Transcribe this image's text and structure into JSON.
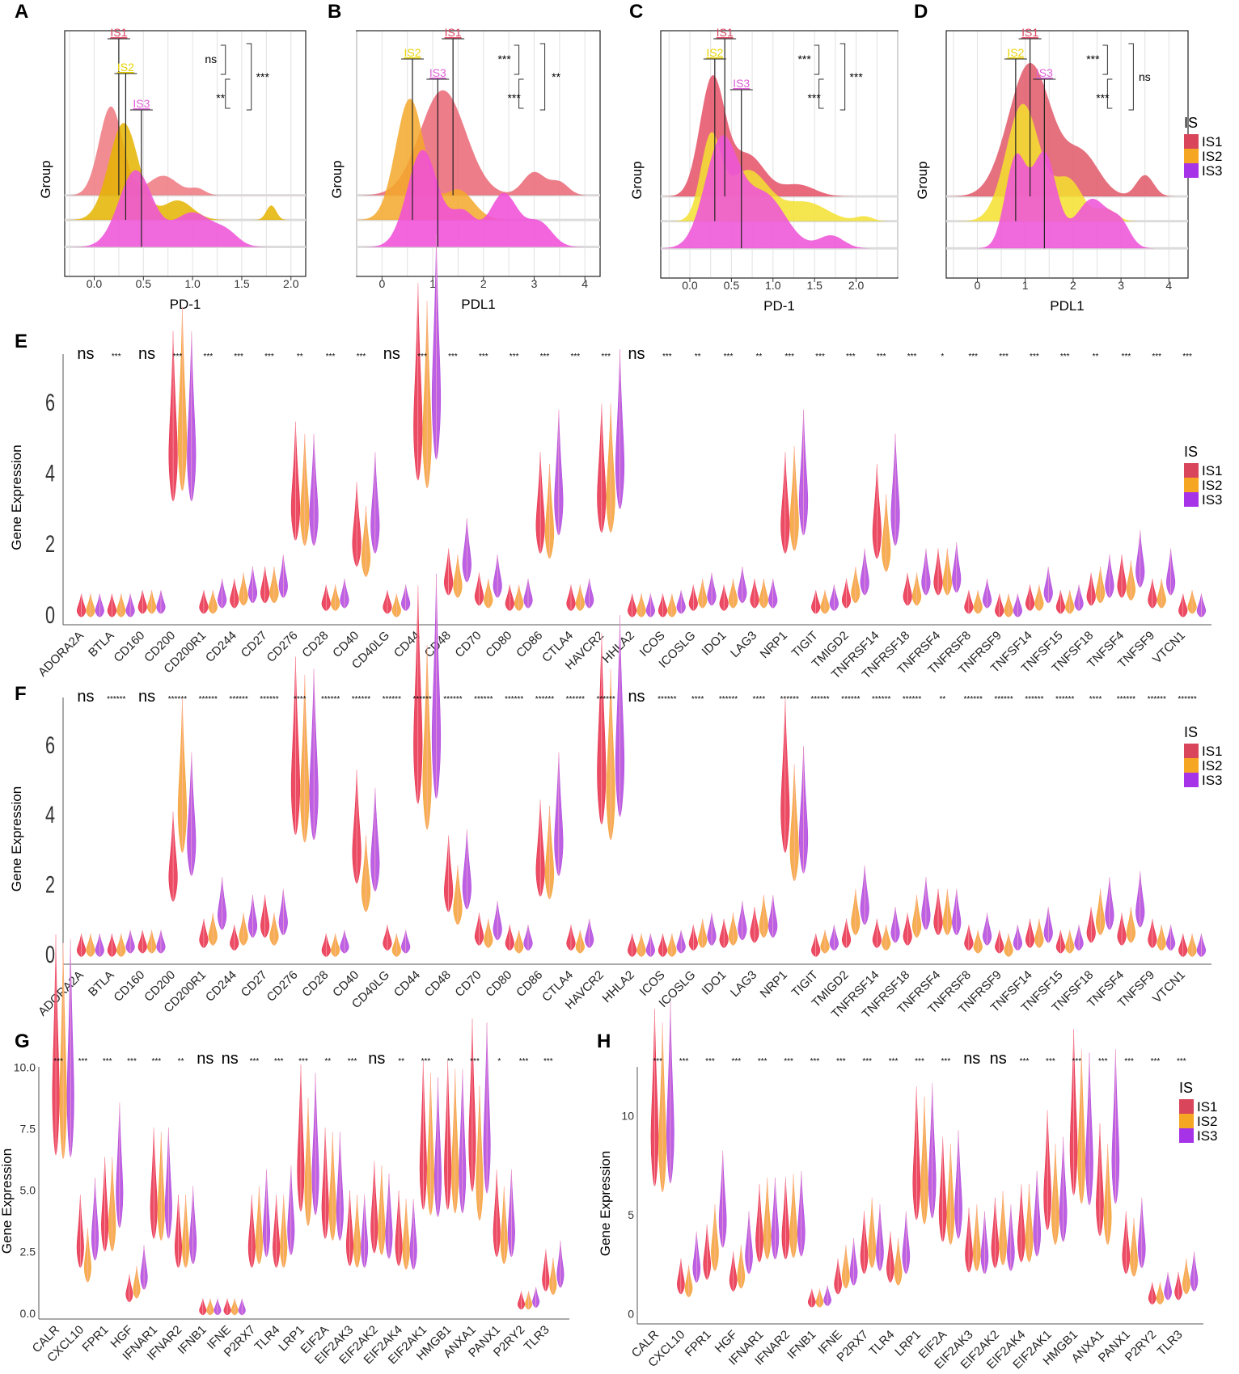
{
  "legend": {
    "title": "IS",
    "groups": [
      "IS1",
      "IS2",
      "IS3"
    ],
    "colors": {
      "IS1": "#d9455a",
      "IS2": "#f5a623",
      "IS3": "#a633e8"
    }
  },
  "chart_data": [
    {
      "panel": "A",
      "type": "area",
      "subtype": "ridgeline",
      "xlabel": "PD-1",
      "ylabel": "Group",
      "xticks": [
        "0.0",
        "0.5",
        "1.0",
        "1.5",
        "2.0"
      ],
      "xlim": [
        -0.3,
        2.15
      ],
      "medians": [
        {
          "name": "IS1",
          "value": 0.25
        },
        {
          "name": "IS2",
          "value": 0.32
        },
        {
          "name": "IS3",
          "value": 0.48
        }
      ],
      "comparisons": [
        {
          "pair": "IS1-IS2",
          "label": "ns"
        },
        {
          "pair": "IS2-IS3",
          "label": "**"
        },
        {
          "pair": "IS1-IS3",
          "label": "***"
        }
      ]
    },
    {
      "panel": "B",
      "type": "area",
      "subtype": "ridgeline",
      "xlabel": "PDL1",
      "ylabel": "Group",
      "xticks": [
        "0",
        "1",
        "2",
        "3",
        "4"
      ],
      "xlim": [
        -0.5,
        4.3
      ],
      "medians": [
        {
          "name": "IS1",
          "value": 1.4
        },
        {
          "name": "IS2",
          "value": 0.6
        },
        {
          "name": "IS3",
          "value": 1.1
        }
      ],
      "comparisons": [
        {
          "pair": "IS1-IS2",
          "label": "***"
        },
        {
          "pair": "IS2-IS3",
          "label": "***"
        },
        {
          "pair": "IS1-IS3",
          "label": "**"
        }
      ]
    },
    {
      "panel": "C",
      "type": "area",
      "subtype": "ridgeline",
      "xlabel": "PD-1",
      "ylabel": "Group",
      "xticks": [
        "0.0",
        "0.5",
        "1.0",
        "1.5",
        "2.0"
      ],
      "xlim": [
        -0.35,
        2.5
      ],
      "medians": [
        {
          "name": "IS1",
          "value": 0.42
        },
        {
          "name": "IS2",
          "value": 0.3
        },
        {
          "name": "IS3",
          "value": 0.62
        }
      ],
      "comparisons": [
        {
          "pair": "IS1-IS2",
          "label": "***"
        },
        {
          "pair": "IS2-IS3",
          "label": "***"
        },
        {
          "pair": "IS1-IS3",
          "label": "***"
        }
      ]
    },
    {
      "panel": "D",
      "type": "area",
      "subtype": "ridgeline",
      "xlabel": "PDL1",
      "ylabel": "Group",
      "xticks": [
        "0",
        "1",
        "2",
        "3",
        "4"
      ],
      "xlim": [
        -0.65,
        4.4
      ],
      "medians": [
        {
          "name": "IS1",
          "value": 1.1
        },
        {
          "name": "IS2",
          "value": 0.8
        },
        {
          "name": "IS3",
          "value": 1.4
        }
      ],
      "comparisons": [
        {
          "pair": "IS1-IS2",
          "label": "***"
        },
        {
          "pair": "IS2-IS3",
          "label": "***"
        },
        {
          "pair": "IS1-IS3",
          "label": "ns"
        }
      ]
    },
    {
      "panel": "E",
      "type": "violin",
      "ylabel": "Gene Expression",
      "yticks": [
        "0",
        "2",
        "4",
        "6"
      ],
      "ylim": [
        -0.3,
        7.8
      ],
      "categories": [
        "ADORA2A",
        "BTLA",
        "CD160",
        "CD200",
        "CD200R1",
        "CD244",
        "CD27",
        "CD276",
        "CD28",
        "CD40",
        "CD40LG",
        "CD44",
        "CD48",
        "CD70",
        "CD80",
        "CD86",
        "CTLA4",
        "HAVCR2",
        "HHLA2",
        "ICOS",
        "ICOSLG",
        "IDO1",
        "LAG3",
        "NRP1",
        "TIGIT",
        "TMIGD2",
        "TNFRSF14",
        "TNFRSF18",
        "TNFRSF4",
        "TNFRSF8",
        "TNFRSF9",
        "TNFSF14",
        "TNFSF15",
        "TNFSF18",
        "TNFSF4",
        "TNFSF9",
        "VTCN1"
      ],
      "significance": [
        "ns",
        "***",
        "ns",
        "***",
        "***",
        "***",
        "***",
        "**",
        "***",
        "***",
        "ns",
        "***",
        "***",
        "***",
        "***",
        "***",
        "***",
        "***",
        "ns",
        "***",
        "**",
        "***",
        "**",
        "***",
        "***",
        "***",
        "***",
        "***",
        "*",
        "***",
        "***",
        "***",
        "***",
        "**",
        "***",
        "***",
        "***"
      ],
      "series": [
        {
          "name": "IS1",
          "values": [
            0.1,
            0.1,
            0.2,
            4.5,
            0.2,
            0.4,
            0.6,
            3.0,
            0.3,
            2.0,
            0.2,
            5.3,
            0.9,
            0.5,
            0.3,
            2.5,
            0.3,
            3.3,
            0.1,
            0.1,
            0.3,
            0.3,
            0.4,
            2.5,
            0.2,
            0.4,
            2.3,
            0.5,
            0.9,
            0.2,
            0.1,
            0.3,
            0.2,
            0.5,
            0.8,
            0.4,
            0.1
          ]
        },
        {
          "name": "IS2",
          "values": [
            0.1,
            0.1,
            0.2,
            4.9,
            0.2,
            0.5,
            0.6,
            2.8,
            0.3,
            1.6,
            0.1,
            5.0,
            0.8,
            0.4,
            0.3,
            2.3,
            0.3,
            3.3,
            0.1,
            0.1,
            0.4,
            0.4,
            0.4,
            2.6,
            0.2,
            0.6,
            1.8,
            0.5,
            0.9,
            0.2,
            0.1,
            0.3,
            0.2,
            0.6,
            0.7,
            0.4,
            0.2
          ]
        },
        {
          "name": "IS3",
          "values": [
            0.1,
            0.1,
            0.2,
            4.5,
            0.4,
            0.6,
            0.8,
            2.8,
            0.4,
            2.5,
            0.3,
            6.1,
            1.4,
            0.8,
            0.4,
            3.2,
            0.4,
            4.2,
            0.1,
            0.2,
            0.5,
            0.6,
            0.4,
            3.2,
            0.3,
            0.9,
            2.8,
            0.9,
            1.0,
            0.4,
            0.1,
            0.6,
            0.3,
            0.8,
            1.2,
            0.9,
            0.1
          ]
        }
      ]
    },
    {
      "panel": "F",
      "type": "violin",
      "ylabel": "Gene Expression",
      "yticks": [
        "0",
        "2",
        "4",
        "6"
      ],
      "ylim": [
        -0.3,
        7.8
      ],
      "categories": [
        "ADORA2A",
        "BTLA",
        "CD160",
        "CD200",
        "CD200R1",
        "CD244",
        "CD27",
        "CD276",
        "CD28",
        "CD40",
        "CD40LG",
        "CD44",
        "CD48",
        "CD70",
        "CD80",
        "CD86",
        "CTLA4",
        "HAVCR2",
        "HHLA2",
        "ICOS",
        "ICOSLG",
        "IDO1",
        "LAG3",
        "NRP1",
        "TIGIT",
        "TMIGD2",
        "TNFRSF14",
        "TNFRSF18",
        "TNFRSF4",
        "TNFRSF8",
        "TNFRSF9",
        "TNFSF14",
        "TNFSF15",
        "TNFSF18",
        "TNFSF4",
        "TNFSF9",
        "VTCN1"
      ],
      "significance": [
        "ns",
        "******",
        "ns",
        "******",
        "******",
        "******",
        "******",
        "****",
        "******",
        "******",
        "******",
        "******",
        "******",
        "******",
        "******",
        "******",
        "******",
        "******",
        "ns",
        "******",
        "****",
        "******",
        "****",
        "******",
        "******",
        "******",
        "******",
        "******",
        "**",
        "******",
        "******",
        "******",
        "******",
        "****",
        "******",
        "******",
        "******"
      ],
      "series": [
        {
          "name": "IS1",
          "values": [
            0.1,
            0.1,
            0.2,
            2.2,
            0.4,
            0.3,
            0.8,
            4.8,
            0.1,
            2.9,
            0.3,
            6.0,
            1.8,
            0.5,
            0.3,
            2.4,
            0.3,
            5.2,
            0.1,
            0.1,
            0.3,
            0.4,
            0.6,
            4.1,
            0.1,
            0.4,
            0.4,
            0.5,
            0.9,
            0.3,
            0.2,
            0.4,
            0.2,
            0.6,
            0.5,
            0.4,
            0.1
          ]
        },
        {
          "name": "IS2",
          "values": [
            0.1,
            0.1,
            0.2,
            4.1,
            0.5,
            0.5,
            0.5,
            4.5,
            0.1,
            1.8,
            0.1,
            5.0,
            1.3,
            0.4,
            0.2,
            2.3,
            0.2,
            4.6,
            0.1,
            0.1,
            0.4,
            0.5,
            0.8,
            3.0,
            0.2,
            0.9,
            0.3,
            0.8,
            0.9,
            0.2,
            0.1,
            0.4,
            0.2,
            0.9,
            0.6,
            0.3,
            0.1
          ]
        },
        {
          "name": "IS3",
          "values": [
            0.1,
            0.2,
            0.2,
            3.2,
            1.1,
            0.8,
            0.9,
            4.6,
            0.2,
            2.6,
            0.2,
            6.2,
            1.9,
            0.7,
            0.3,
            3.2,
            0.4,
            5.5,
            0.1,
            0.2,
            0.5,
            0.7,
            0.8,
            3.3,
            0.3,
            1.3,
            0.6,
            1.1,
            0.9,
            0.5,
            0.3,
            0.6,
            0.3,
            1.1,
            1.2,
            0.3,
            0.1
          ]
        }
      ]
    },
    {
      "panel": "G",
      "type": "violin",
      "ylabel": "Gene Expression",
      "yticks": [
        "0.0",
        "2.5",
        "5.0",
        "7.5",
        "10.0"
      ],
      "ylim": [
        -0.3,
        10.6
      ],
      "categories": [
        "CALR",
        "CXCL10",
        "FPR1",
        "HGF",
        "IFNAR1",
        "IFNAR2",
        "IFNB1",
        "IFNE",
        "P2RX7",
        "TLR4",
        "LRP1",
        "EIF2A",
        "EIF2AK3",
        "EIF2AK2",
        "EIF2AK4",
        "EIF2AK1",
        "HMGB1",
        "ANXA1",
        "PANX1",
        "P2RY2",
        "TLR3"
      ],
      "significance": [
        "***",
        "***",
        "***",
        "***",
        "***",
        "**",
        "ns",
        "ns",
        "***",
        "***",
        "***",
        "**",
        "***",
        "ns",
        "**",
        "***",
        "**",
        "***",
        "*",
        "***",
        "***"
      ],
      "series": [
        {
          "name": "IS1",
          "values": [
            8.8,
            2.6,
            3.5,
            0.7,
            4.2,
            2.6,
            0.05,
            0.05,
            2.6,
            2.6,
            5.7,
            4.2,
            2.7,
            3.4,
            2.7,
            5.8,
            5.8,
            6.8,
            3.2,
            0.3,
            1.3
          ]
        },
        {
          "name": "IS2",
          "values": [
            8.6,
            1.8,
            3.5,
            0.9,
            4.1,
            2.6,
            0.05,
            0.05,
            2.8,
            2.6,
            4.9,
            4.1,
            2.6,
            3.3,
            2.5,
            5.5,
            5.6,
            5.2,
            2.8,
            0.3,
            1.1
          ]
        },
        {
          "name": "IS3",
          "values": [
            8.7,
            3.0,
            4.8,
            1.4,
            4.2,
            2.8,
            0.05,
            0.05,
            3.2,
            3.3,
            5.5,
            4.1,
            2.6,
            3.1,
            2.5,
            5.4,
            5.6,
            6.7,
            3.2,
            0.4,
            1.5
          ]
        }
      ]
    },
    {
      "panel": "H",
      "type": "violin",
      "ylabel": "Gene Expression",
      "yticks": [
        "0",
        "5",
        "10"
      ],
      "ylim": [
        -0.6,
        13.2
      ],
      "categories": [
        "CALR",
        "CXCL10",
        "FPR1",
        "HGF",
        "IFNAR1",
        "IFNAR2",
        "IFNB1",
        "IFNE",
        "P2RX7",
        "TLR4",
        "LRP1",
        "EIF2A",
        "EIF2AK3",
        "EIF2AK2",
        "EIF2AK4",
        "EIF2AK1",
        "HMGB1",
        "ANXA1",
        "PANX1",
        "P2RY2",
        "TLR3"
      ],
      "significance": [
        "***",
        "***",
        "***",
        "***",
        "***",
        "***",
        "***",
        "***",
        "***",
        "***",
        "***",
        "***",
        "ns",
        "ns",
        "***",
        "***",
        "***",
        "***",
        "***",
        "***",
        "***"
      ],
      "series": [
        {
          "name": "IS1",
          "values": [
            8.8,
            1.4,
            2.4,
            1.6,
            3.6,
            3.8,
            0.5,
            1.4,
            2.8,
            2.2,
            6.5,
            5.0,
            2.9,
            3.2,
            3.6,
            5.8,
            8.2,
            5.4,
            2.8,
            0.7,
            1.0
          ]
        },
        {
          "name": "IS2",
          "values": [
            8.4,
            1.2,
            3.0,
            1.8,
            3.8,
            3.9,
            0.5,
            1.8,
            3.2,
            2.0,
            6.2,
            4.8,
            3.0,
            3.4,
            3.6,
            4.8,
            7.6,
            4.8,
            2.6,
            0.7,
            1.4
          ]
        },
        {
          "name": "IS3",
          "values": [
            9.0,
            2.2,
            4.6,
            2.8,
            3.8,
            4.0,
            0.6,
            2.0,
            3.0,
            2.8,
            6.6,
            5.2,
            2.8,
            3.0,
            4.0,
            5.0,
            7.5,
            7.6,
            3.2,
            1.0,
            1.6
          ]
        }
      ]
    }
  ]
}
